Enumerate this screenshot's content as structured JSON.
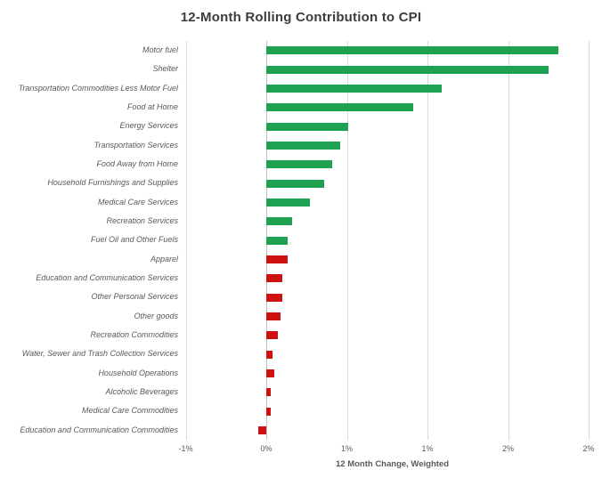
{
  "chart_data": {
    "type": "bar",
    "orientation": "horizontal",
    "title": "12-Month Rolling Contribution to CPI",
    "xlabel": "12 Month Change, Weighted",
    "xlim": [
      -0.5,
      2.06
    ],
    "grid": true,
    "legend": false,
    "unit": "percent",
    "x_ticks": [
      {
        "label": "-1%",
        "value": -0.5
      },
      {
        "label": "0%",
        "value": 0
      },
      {
        "label": "1%",
        "value": 0.5
      },
      {
        "label": "1%",
        "value": 1
      },
      {
        "label": "2%",
        "value": 1.5
      },
      {
        "label": "2%",
        "value": 2
      }
    ],
    "series": [
      {
        "label": "Motor fuel",
        "value": 1.81,
        "color": "#1FA152"
      },
      {
        "label": "Shelter",
        "value": 1.75,
        "color": "#1FA152"
      },
      {
        "label": "Transportation Commodities Less Motor Fuel",
        "value": 1.09,
        "color": "#1FA152"
      },
      {
        "label": "Food at Home",
        "value": 0.91,
        "color": "#1FA152"
      },
      {
        "label": "Energy Services",
        "value": 0.51,
        "color": "#1FA152"
      },
      {
        "label": "Transportation Services",
        "value": 0.46,
        "color": "#1FA152"
      },
      {
        "label": "Food Away from Home",
        "value": 0.41,
        "color": "#1FA152"
      },
      {
        "label": "Household Furnishings and Supplies",
        "value": 0.36,
        "color": "#1FA152"
      },
      {
        "label": "Medical Care Services",
        "value": 0.27,
        "color": "#1FA152"
      },
      {
        "label": "Recreation Services",
        "value": 0.16,
        "color": "#1FA152"
      },
      {
        "label": "Fuel Oil and Other Fuels",
        "value": 0.13,
        "color": "#1FA152"
      },
      {
        "label": "Apparel",
        "value": 0.13,
        "color": "#CF1112"
      },
      {
        "label": "Education and Communication Services",
        "value": 0.1,
        "color": "#CF1112"
      },
      {
        "label": "Other Personal Services",
        "value": 0.1,
        "color": "#CF1112"
      },
      {
        "label": "Other goods",
        "value": 0.09,
        "color": "#CF1112"
      },
      {
        "label": "Recreation Commodities",
        "value": 0.07,
        "color": "#CF1112"
      },
      {
        "label": "Water, Sewer and Trash Collection Services",
        "value": 0.04,
        "color": "#CF1112"
      },
      {
        "label": "Household Operations",
        "value": 0.05,
        "color": "#CF1112"
      },
      {
        "label": "Alcoholic Beverages",
        "value": 0.03,
        "color": "#CF1112"
      },
      {
        "label": "Medical Care Commodities",
        "value": 0.03,
        "color": "#CF1112"
      },
      {
        "label": "Education and Communication Commodities",
        "value": -0.05,
        "color": "#CF1112"
      }
    ],
    "colors": {
      "positive_group": "#1FA152",
      "negative_group": "#CF1112",
      "gridline": "#D9D9D9",
      "text": "#595959",
      "title_text": "#3D3D3D"
    }
  }
}
